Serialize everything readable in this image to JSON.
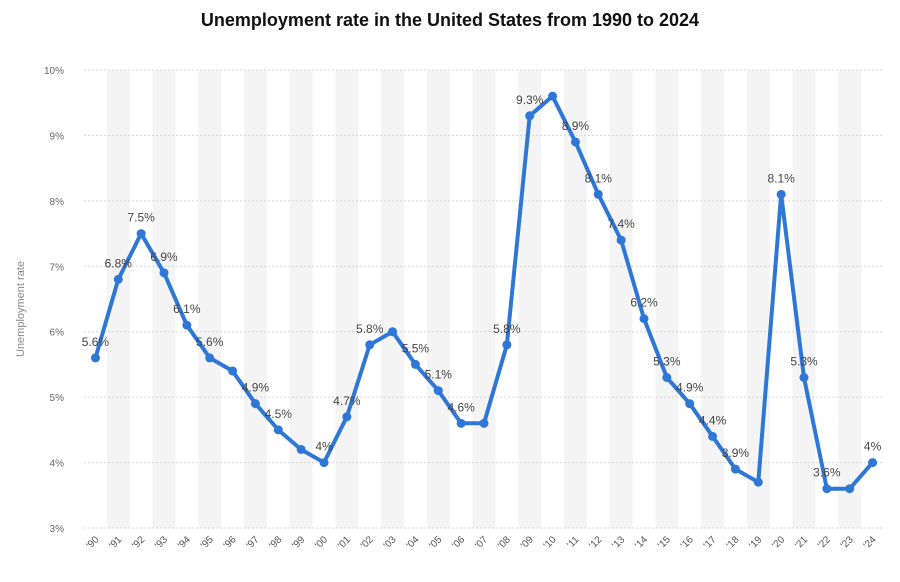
{
  "chart_data": {
    "type": "line",
    "title": "Unemployment rate in the United States from 1990 to 2024",
    "ylabel": "Unemployment rate",
    "xlabel": "",
    "categories": [
      "'90",
      "'91",
      "'92",
      "'93",
      "'94",
      "'95",
      "'96",
      "'97",
      "'98",
      "'99",
      "'00",
      "'01",
      "'02",
      "'03",
      "'04",
      "'05",
      "'06",
      "'07",
      "'08",
      "'09",
      "'10",
      "'11",
      "'12",
      "'13",
      "'14",
      "'15",
      "'16",
      "'17",
      "'18",
      "'19",
      "'20",
      "'21",
      "'22",
      "'23",
      "'24"
    ],
    "values": [
      5.6,
      6.8,
      7.5,
      6.9,
      6.1,
      5.6,
      5.4,
      4.9,
      4.5,
      4.2,
      4.0,
      4.7,
      5.8,
      6.0,
      5.5,
      5.1,
      4.6,
      4.6,
      5.8,
      9.3,
      9.6,
      8.9,
      8.1,
      7.4,
      6.2,
      5.3,
      4.9,
      4.4,
      3.9,
      3.7,
      8.1,
      5.3,
      3.6,
      3.6,
      4.0
    ],
    "data_labels": [
      "5.6%",
      "6.8%",
      "7.5%",
      "6.9%",
      "6.1%",
      "5.6%",
      "",
      "4.9%",
      "4.5%",
      "",
      "4%",
      "4.7%",
      "5.8%",
      "",
      "5.5%",
      "5.1%",
      "4.6%",
      "",
      "5.8%",
      "9.3%",
      "",
      "8.9%",
      "8.1%",
      "7.4%",
      "6.2%",
      "5.3%",
      "4.9%",
      "4.4%",
      "3.9%",
      "",
      "8.1%",
      "5.3%",
      "3.6%",
      "",
      "4%"
    ],
    "y_ticks": [
      "3%",
      "4%",
      "5%",
      "6%",
      "7%",
      "8%",
      "9%",
      "10%"
    ],
    "ylim": [
      3,
      10
    ],
    "line_color": "#2f77d6",
    "grid": true,
    "legend": false
  }
}
